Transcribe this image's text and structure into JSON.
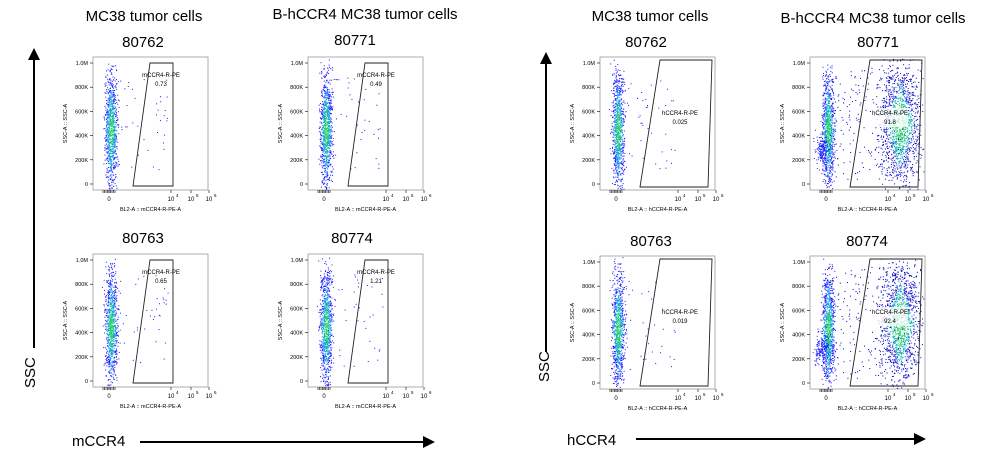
{
  "panels": [
    {
      "header_left": "MC38 tumor cells",
      "header_right": "B-hCCR4 MC38 tumor cells",
      "y_axis_label": "SSC",
      "x_axis_label": "mCCR4",
      "plots": [
        {
          "sample_id": "80762",
          "gate_name": "mCCR4-R-PE",
          "gate_value": "0.73",
          "y_label": "SSC-A :: SSC-A",
          "x_label": "BL2-A :: mCCR4-R-PE-A",
          "positive": false
        },
        {
          "sample_id": "80771",
          "gate_name": "mCCR4-R-PE",
          "gate_value": "0.49",
          "y_label": "SSC-A :: SSC-A",
          "x_label": "BL2-A :: mCCR4-R-PE-A",
          "positive": false
        },
        {
          "sample_id": "80763",
          "gate_name": "mCCR4-R-PE",
          "gate_value": "0.65",
          "y_label": "SSC-A :: SSC-A",
          "x_label": "BL2-A :: mCCR4-R-PE-A",
          "positive": false
        },
        {
          "sample_id": "80774",
          "gate_name": "mCCR4-R-PE",
          "gate_value": "1.21",
          "y_label": "SSC-A :: SSC-A",
          "x_label": "BL2-A :: mCCR4-R-PE-A",
          "positive": false
        }
      ]
    },
    {
      "header_left": "MC38 tumor cells",
      "header_right": "B-hCCR4 MC38 tumor cells",
      "y_axis_label": "SSC",
      "x_axis_label": "hCCR4",
      "plots": [
        {
          "sample_id": "80762",
          "gate_name": "hCCR4-R-PE",
          "gate_value": "0.025",
          "y_label": "SSC-A :: SSC-A",
          "x_label": "BL2-A :: hCCR4-R-PE-A",
          "positive": false
        },
        {
          "sample_id": "80771",
          "gate_name": "hCCR4-R-PE",
          "gate_value": "91.8",
          "y_label": "SSC-A :: SSC-A",
          "x_label": "BL2-A :: hCCR4-R-PE-A",
          "positive": true
        },
        {
          "sample_id": "80763",
          "gate_name": "hCCR4-R-PE",
          "gate_value": "0.019",
          "y_label": "SSC-A :: SSC-A",
          "x_label": "BL2-A :: hCCR4-R-PE-A",
          "positive": false
        },
        {
          "sample_id": "80774",
          "gate_name": "hCCR4-R-PE",
          "gate_value": "92.4",
          "y_label": "SSC-A :: SSC-A",
          "x_label": "BL2-A :: hCCR4-R-PE-A",
          "positive": true
        }
      ]
    }
  ],
  "y_ticks": [
    "1.0M",
    "800K",
    "600K",
    "400K",
    "200K",
    "0"
  ],
  "x_ticks": [
    "0",
    "10",
    "10",
    "10",
    "10"
  ],
  "x_tick_exps": [
    "",
    "4",
    "5",
    "6"
  ]
}
